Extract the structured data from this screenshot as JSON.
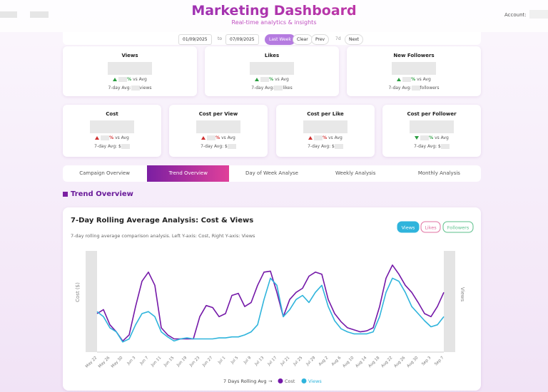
{
  "header": {
    "title": "Marketing Dashboard",
    "subtitle": "Real-time analytics & insights",
    "account": "Account:"
  },
  "controls": {
    "start": "01/09/2025",
    "sep": "to",
    "end": "07/09/2025",
    "last_week": "Last Week",
    "clear": "Clear",
    "prev": "Prev",
    "days": "7d",
    "next": "Next"
  },
  "cards": {
    "pct": "%",
    "vs": "vs Avg",
    "avg": "7-day Avg:",
    "avg_cost": "7-day Avg: $",
    "row1": [
      {
        "title": "Views",
        "unit": "views"
      },
      {
        "title": "Likes",
        "unit": "likes"
      },
      {
        "title": "New Followers",
        "unit": "followers"
      }
    ],
    "row2": [
      {
        "title": "Cost"
      },
      {
        "title": "Cost per View"
      },
      {
        "title": "Cost per Like"
      },
      {
        "title": "Cost per Follower"
      }
    ]
  },
  "tabs": [
    "Campaign Overview",
    "Trend Overview",
    "Day of Week Analyse",
    "Weekly Analysis",
    "Monthly Analysis"
  ],
  "section": "Trend Overview",
  "chart_data": {
    "type": "line",
    "title": "7-Day Rolling Average Analysis: Cost & Views",
    "subtitle": "7-day rolling average comparison analysis. Left Y-axis: Cost, Right Y-axis: Views",
    "buttons": [
      "Views",
      "Likes",
      "Followers"
    ],
    "y_label": "Cost ($)",
    "y2_label": "Views",
    "legend_title": "7 Days Rolling Avg",
    "legend_arrow": "→",
    "categories": [
      "May 22",
      null,
      "May 26",
      null,
      "May 30",
      null,
      "Jun 3",
      null,
      "Jun 7",
      null,
      "Jun 11",
      null,
      "Jun 15",
      null,
      "Jun 19",
      null,
      "Jun 23",
      null,
      "Jun 27",
      null,
      "Jul 1",
      null,
      "Jul 5",
      null,
      "Jul 9",
      null,
      "Jul 13",
      null,
      "Jul 17",
      null,
      "Jul 21",
      null,
      "Jul 25",
      null,
      "Jul 29",
      null,
      "Aug 2",
      null,
      "Aug 6",
      null,
      "Aug 10",
      null,
      "Aug 14",
      null,
      "Aug 18",
      null,
      "Aug 22",
      null,
      "Aug 26",
      null,
      "Aug 30",
      null,
      "Sep 3",
      null,
      "Sep 7"
    ],
    "ylim": [
      0,
      100
    ],
    "y2lim": [
      0,
      100
    ],
    "series": [
      {
        "name": "Cost",
        "color": "#7418a8",
        "values": [
          38,
          42,
          27,
          20,
          11,
          17,
          45,
          70,
          79,
          66,
          24,
          17,
          13,
          13,
          13,
          13,
          35,
          46,
          44,
          35,
          38,
          56,
          58,
          45,
          49,
          66,
          79,
          80,
          59,
          35,
          52,
          59,
          63,
          75,
          79,
          77,
          52,
          38,
          30,
          24,
          22,
          20,
          21,
          24,
          45,
          73,
          86,
          77,
          66,
          59,
          49,
          38,
          35,
          45,
          59
        ]
      },
      {
        "name": "Views",
        "color": "#2fb4dc",
        "axis": "y2",
        "values": [
          40,
          35,
          24,
          20,
          10,
          13,
          27,
          38,
          40,
          35,
          20,
          15,
          11,
          13,
          14,
          13,
          13,
          13,
          13,
          14,
          14,
          15,
          15,
          17,
          20,
          27,
          52,
          73,
          66,
          35,
          42,
          52,
          56,
          49,
          59,
          66,
          45,
          31,
          23,
          20,
          18,
          18,
          18,
          20,
          35,
          59,
          73,
          70,
          59,
          45,
          38,
          31,
          25,
          27,
          35
        ]
      }
    ]
  }
}
